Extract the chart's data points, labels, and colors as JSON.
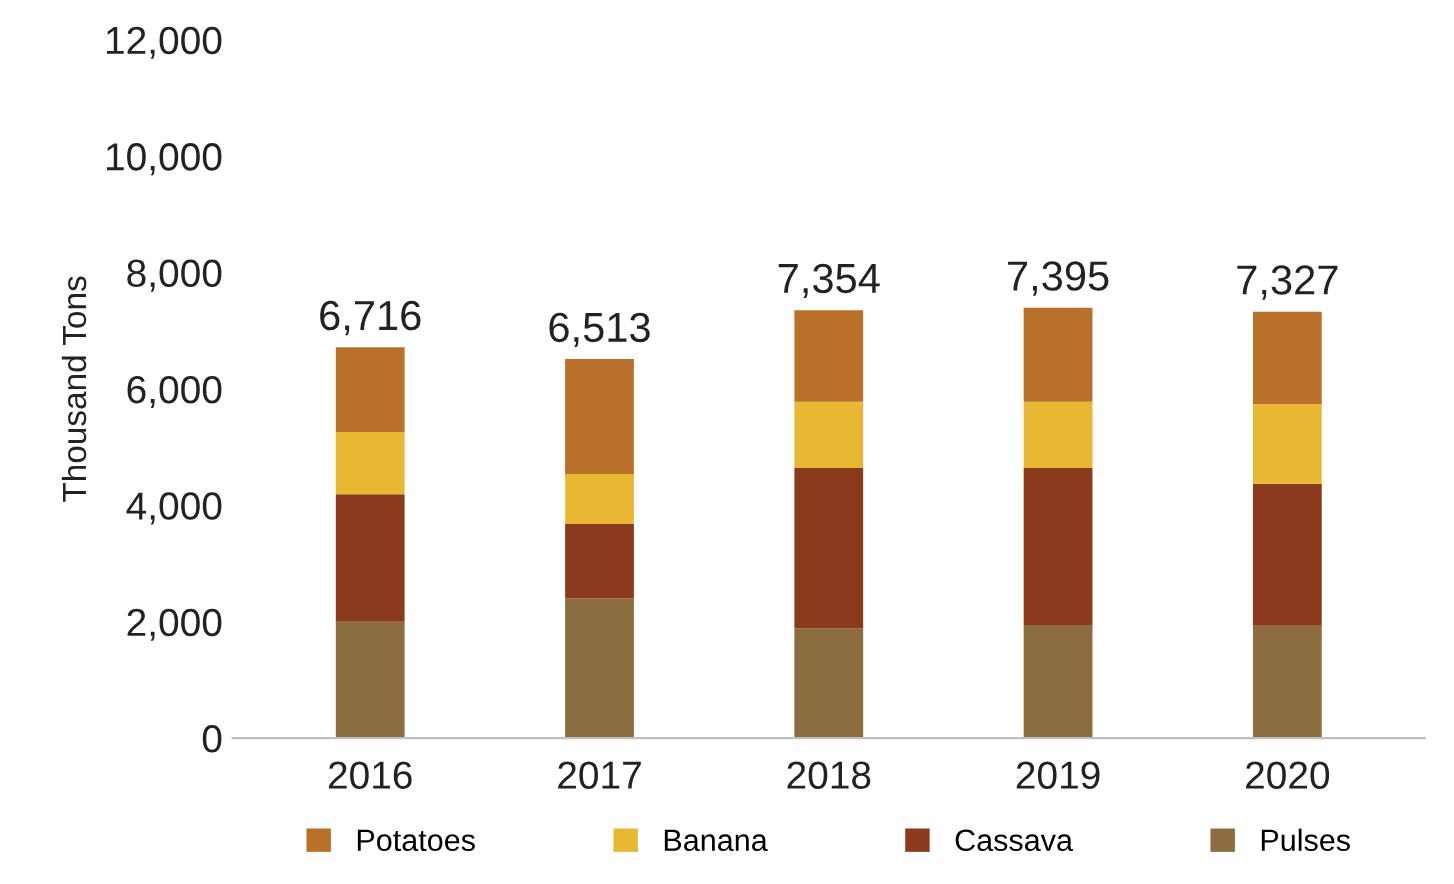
{
  "chart_data": {
    "type": "bar",
    "stacked": true,
    "ylabel": "Thousand Tons",
    "categories": [
      "2016",
      "2017",
      "2018",
      "2019",
      "2020"
    ],
    "series": [
      {
        "name": "Pulses",
        "color": "#8c6d3f",
        "values": [
          2000,
          2400,
          1890,
          1930,
          1930
        ]
      },
      {
        "name": "Cassava",
        "color": "#8b3a1e",
        "values": [
          2190,
          1280,
          2750,
          2710,
          2440
        ]
      },
      {
        "name": "Banana",
        "color": "#e8b832",
        "values": [
          1070,
          860,
          1140,
          1140,
          1370
        ]
      },
      {
        "name": "Potatoes",
        "color": "#b8702a",
        "values": [
          1456,
          1973,
          1574,
          1615,
          1587
        ]
      }
    ],
    "totals": [
      "6,716",
      "6,513",
      "7,354",
      "7,395",
      "7,327"
    ],
    "ylim": [
      0,
      12000
    ],
    "yticks": [
      {
        "value": 0,
        "label": "0"
      },
      {
        "value": 2000,
        "label": "2,000"
      },
      {
        "value": 4000,
        "label": "4,000"
      },
      {
        "value": 6000,
        "label": "6,000"
      },
      {
        "value": 8000,
        "label": "8,000"
      },
      {
        "value": 10000,
        "label": "10,000"
      },
      {
        "value": 12000,
        "label": "12,000"
      }
    ],
    "grid": false,
    "legend": "bottom"
  }
}
